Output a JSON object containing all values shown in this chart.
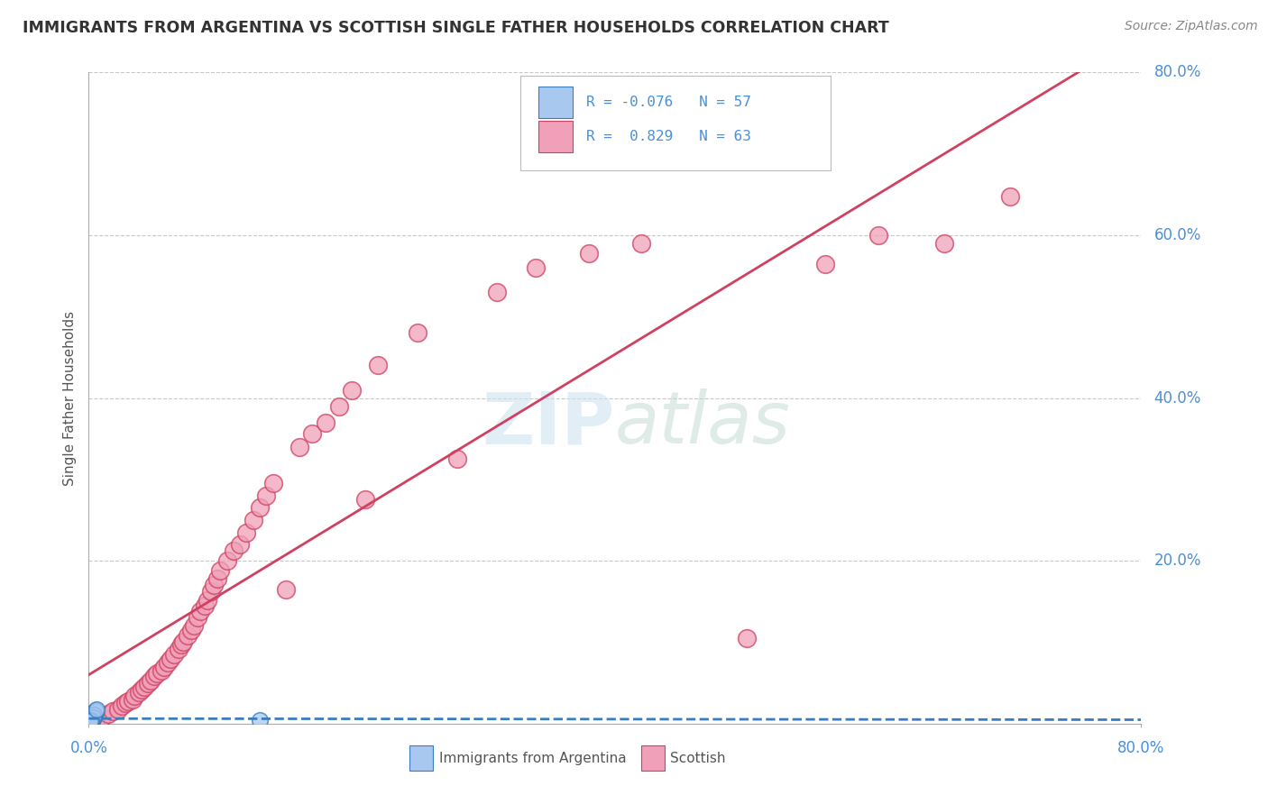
{
  "title": "IMMIGRANTS FROM ARGENTINA VS SCOTTISH SINGLE FATHER HOUSEHOLDS CORRELATION CHART",
  "source_text": "Source: ZipAtlas.com",
  "ylabel": "Single Father Households",
  "xlim": [
    0.0,
    0.8
  ],
  "ylim": [
    0.0,
    0.8
  ],
  "yticks": [
    0.0,
    0.2,
    0.4,
    0.6,
    0.8
  ],
  "ytick_labels": [
    "0.0%",
    "20.0%",
    "40.0%",
    "60.0%",
    "80.0%"
  ],
  "xtick_labels": [
    "0.0%",
    "80.0%"
  ],
  "legend_R1": "-0.076",
  "legend_N1": "57",
  "legend_R2": "0.829",
  "legend_N2": "63",
  "color_blue": "#A8C8F0",
  "color_pink": "#F0A0B8",
  "color_blue_line": "#3A7CC0",
  "color_pink_line": "#D04060",
  "watermark": "ZIPatlas",
  "background_color": "#FFFFFF",
  "grid_color": "#C8C8C8",
  "blue_scatter_x": [
    0.001,
    0.002,
    0.001,
    0.003,
    0.001,
    0.002,
    0.002,
    0.001,
    0.002,
    0.003,
    0.001,
    0.002,
    0.003,
    0.001,
    0.002,
    0.001,
    0.002,
    0.001,
    0.003,
    0.002,
    0.001,
    0.002,
    0.001,
    0.003,
    0.002,
    0.001,
    0.003,
    0.002,
    0.001,
    0.004,
    0.002,
    0.001,
    0.003,
    0.002,
    0.001,
    0.004,
    0.003,
    0.002,
    0.001,
    0.005,
    0.003,
    0.002,
    0.001,
    0.004,
    0.003,
    0.002,
    0.001,
    0.005,
    0.003,
    0.002,
    0.13,
    0.005,
    0.004,
    0.003,
    0.002,
    0.001,
    0.006
  ],
  "blue_scatter_y": [
    0.003,
    0.004,
    0.002,
    0.005,
    0.004,
    0.003,
    0.005,
    0.002,
    0.004,
    0.006,
    0.003,
    0.005,
    0.007,
    0.002,
    0.004,
    0.003,
    0.006,
    0.002,
    0.008,
    0.004,
    0.003,
    0.005,
    0.002,
    0.007,
    0.004,
    0.003,
    0.009,
    0.005,
    0.003,
    0.01,
    0.006,
    0.004,
    0.011,
    0.007,
    0.004,
    0.012,
    0.008,
    0.005,
    0.003,
    0.013,
    0.009,
    0.006,
    0.003,
    0.014,
    0.01,
    0.006,
    0.004,
    0.015,
    0.01,
    0.006,
    0.004,
    0.016,
    0.011,
    0.007,
    0.004,
    0.003,
    0.018
  ],
  "pink_scatter_x": [
    0.005,
    0.01,
    0.015,
    0.018,
    0.022,
    0.025,
    0.028,
    0.03,
    0.033,
    0.035,
    0.038,
    0.04,
    0.042,
    0.045,
    0.047,
    0.05,
    0.052,
    0.055,
    0.057,
    0.06,
    0.062,
    0.065,
    0.068,
    0.07,
    0.072,
    0.075,
    0.078,
    0.08,
    0.083,
    0.085,
    0.088,
    0.09,
    0.093,
    0.095,
    0.098,
    0.1,
    0.105,
    0.11,
    0.115,
    0.12,
    0.125,
    0.13,
    0.135,
    0.14,
    0.15,
    0.16,
    0.17,
    0.18,
    0.19,
    0.2,
    0.21,
    0.22,
    0.25,
    0.28,
    0.31,
    0.34,
    0.38,
    0.42,
    0.5,
    0.56,
    0.6,
    0.65,
    0.7
  ],
  "pink_scatter_y": [
    0.004,
    0.008,
    0.012,
    0.015,
    0.018,
    0.022,
    0.025,
    0.028,
    0.03,
    0.034,
    0.038,
    0.042,
    0.045,
    0.05,
    0.053,
    0.058,
    0.062,
    0.065,
    0.07,
    0.075,
    0.08,
    0.085,
    0.092,
    0.097,
    0.1,
    0.108,
    0.115,
    0.12,
    0.13,
    0.138,
    0.145,
    0.152,
    0.162,
    0.17,
    0.178,
    0.188,
    0.2,
    0.212,
    0.22,
    0.235,
    0.25,
    0.265,
    0.28,
    0.295,
    0.165,
    0.34,
    0.356,
    0.37,
    0.39,
    0.41,
    0.275,
    0.44,
    0.48,
    0.325,
    0.53,
    0.56,
    0.578,
    0.59,
    0.105,
    0.565,
    0.6,
    0.59,
    0.648
  ]
}
